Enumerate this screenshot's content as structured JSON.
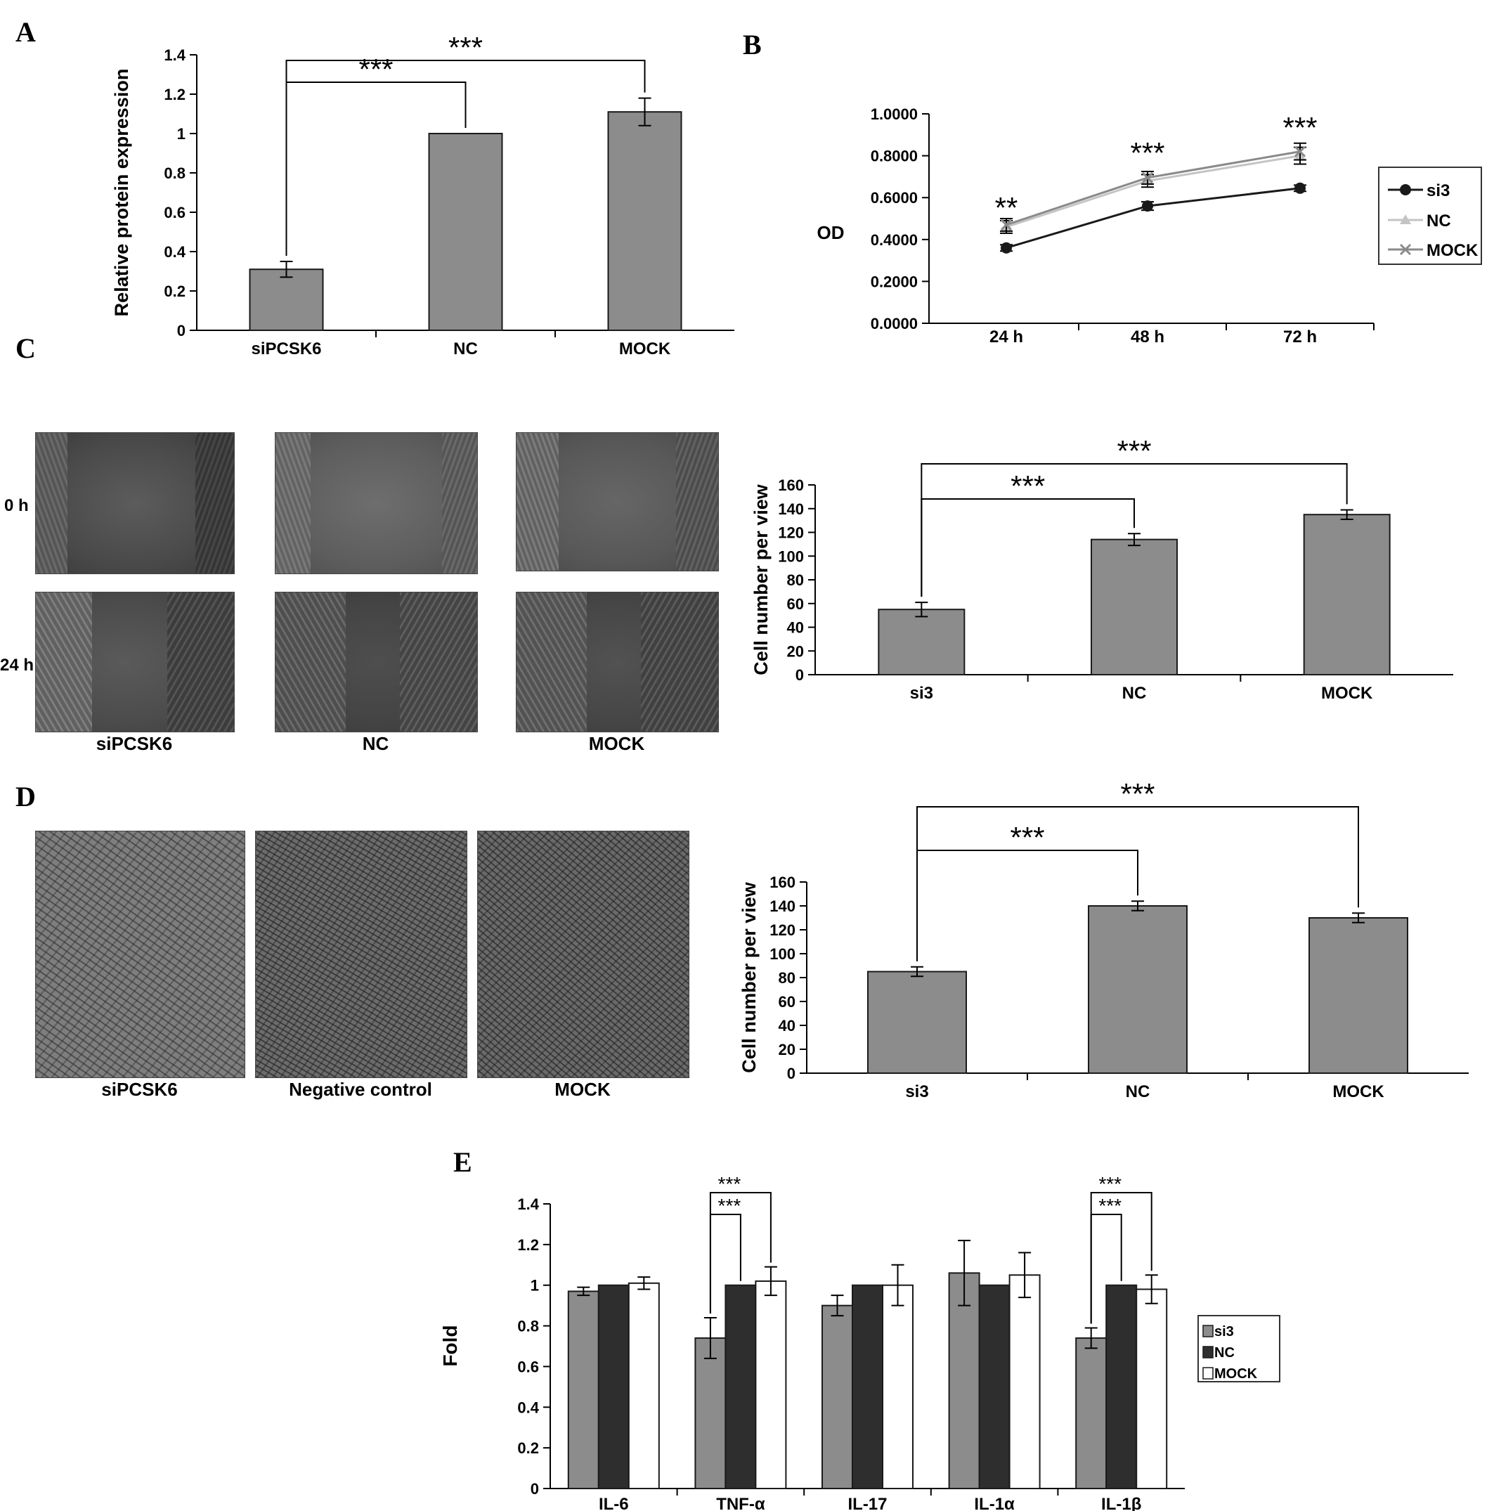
{
  "panel_labels": {
    "a": "A",
    "b": "B",
    "c": "C",
    "d": "D",
    "e": "E"
  },
  "colors": {
    "bar": "#8c8c8c",
    "dark": "#2e2e2e",
    "white": "#ffffff",
    "si3_line": "#1a1a1a",
    "nc_line": "#c4c4c4",
    "mock_line": "#8a8a8a"
  },
  "panel_c": {
    "row_labels": [
      "0 h",
      "24 h"
    ],
    "captions": [
      "siPCSK6",
      "NC",
      "MOCK"
    ]
  },
  "panel_d": {
    "captions": [
      "siPCSK6",
      "Negative control",
      "MOCK"
    ]
  },
  "chart_data": [
    {
      "id": "A",
      "type": "bar",
      "categories": [
        "siPCSK6",
        "NC",
        "MOCK"
      ],
      "values": [
        0.31,
        1.0,
        1.11
      ],
      "errors": [
        0.04,
        0.0,
        0.07
      ],
      "ylabel": "Relative protein expression",
      "ylim": [
        0,
        1.4
      ],
      "yticks": [
        "0",
        "0.2",
        "0.4",
        "0.6",
        "0.8",
        "1",
        "1.2",
        "1.4"
      ],
      "significance": [
        {
          "from": 0,
          "to": 1,
          "label": "***"
        },
        {
          "from": 0,
          "to": 2,
          "label": "***"
        }
      ]
    },
    {
      "id": "B",
      "type": "line",
      "x": [
        "24 h",
        "48 h",
        "72 h"
      ],
      "ylabel": "OD",
      "ylim": [
        0,
        1.0
      ],
      "yticks": [
        "0.0000",
        "0.2000",
        "0.4000",
        "0.6000",
        "0.8000",
        "1.0000"
      ],
      "series": [
        {
          "name": "si3",
          "values": [
            0.36,
            0.56,
            0.645
          ],
          "errors": [
            0.015,
            0.02,
            0.015
          ]
        },
        {
          "name": "NC",
          "values": [
            0.46,
            0.68,
            0.8
          ],
          "errors": [
            0.03,
            0.03,
            0.04
          ]
        },
        {
          "name": "MOCK",
          "values": [
            0.47,
            0.695,
            0.82
          ],
          "errors": [
            0.03,
            0.03,
            0.04
          ]
        }
      ],
      "annotations": [
        "**",
        "***",
        "***"
      ],
      "legend": "right"
    },
    {
      "id": "C",
      "type": "bar",
      "categories": [
        "si3",
        "NC",
        "MOCK"
      ],
      "values": [
        55,
        114,
        135
      ],
      "errors": [
        6,
        5,
        4
      ],
      "ylabel": "Cell number per view",
      "ylim": [
        0,
        160
      ],
      "yticks": [
        "0",
        "20",
        "40",
        "60",
        "80",
        "100",
        "120",
        "140",
        "160"
      ],
      "significance": [
        {
          "from": 0,
          "to": 1,
          "label": "***"
        },
        {
          "from": 0,
          "to": 2,
          "label": "***"
        }
      ]
    },
    {
      "id": "D",
      "type": "bar",
      "categories": [
        "si3",
        "NC",
        "MOCK"
      ],
      "values": [
        85,
        140,
        130
      ],
      "errors": [
        4,
        4,
        4
      ],
      "ylabel": "Cell number per view",
      "ylim": [
        0,
        160
      ],
      "yticks": [
        "0",
        "20",
        "40",
        "60",
        "80",
        "100",
        "120",
        "140",
        "160"
      ],
      "significance": [
        {
          "from": 0,
          "to": 1,
          "label": "***"
        },
        {
          "from": 0,
          "to": 2,
          "label": "***"
        }
      ]
    },
    {
      "id": "E",
      "type": "bar",
      "categories": [
        "IL-6",
        "TNF-α",
        "IL-17",
        "IL-1α",
        "IL-1β"
      ],
      "series": [
        {
          "name": "si3",
          "values": [
            0.97,
            0.74,
            0.9,
            1.06,
            0.74
          ],
          "errors": [
            0.02,
            0.1,
            0.05,
            0.16,
            0.05
          ]
        },
        {
          "name": "NC",
          "values": [
            1.0,
            1.0,
            1.0,
            1.0,
            1.0
          ],
          "errors": [
            0,
            0,
            0,
            0,
            0
          ]
        },
        {
          "name": "MOCK",
          "values": [
            1.01,
            1.02,
            1.0,
            1.05,
            0.98
          ],
          "errors": [
            0.03,
            0.07,
            0.1,
            0.11,
            0.07
          ]
        }
      ],
      "ylabel": "Fold",
      "ylim": [
        0,
        1.4
      ],
      "yticks": [
        "0",
        "0.2",
        "0.4",
        "0.6",
        "0.8",
        "1",
        "1.2",
        "1.4"
      ],
      "significance": [
        {
          "group": 1,
          "from": 0,
          "to": 1,
          "label": "***"
        },
        {
          "group": 1,
          "from": 0,
          "to": 2,
          "label": "***"
        },
        {
          "group": 4,
          "from": 0,
          "to": 1,
          "label": "***"
        },
        {
          "group": 4,
          "from": 0,
          "to": 2,
          "label": "***"
        }
      ],
      "legend": "right"
    }
  ]
}
